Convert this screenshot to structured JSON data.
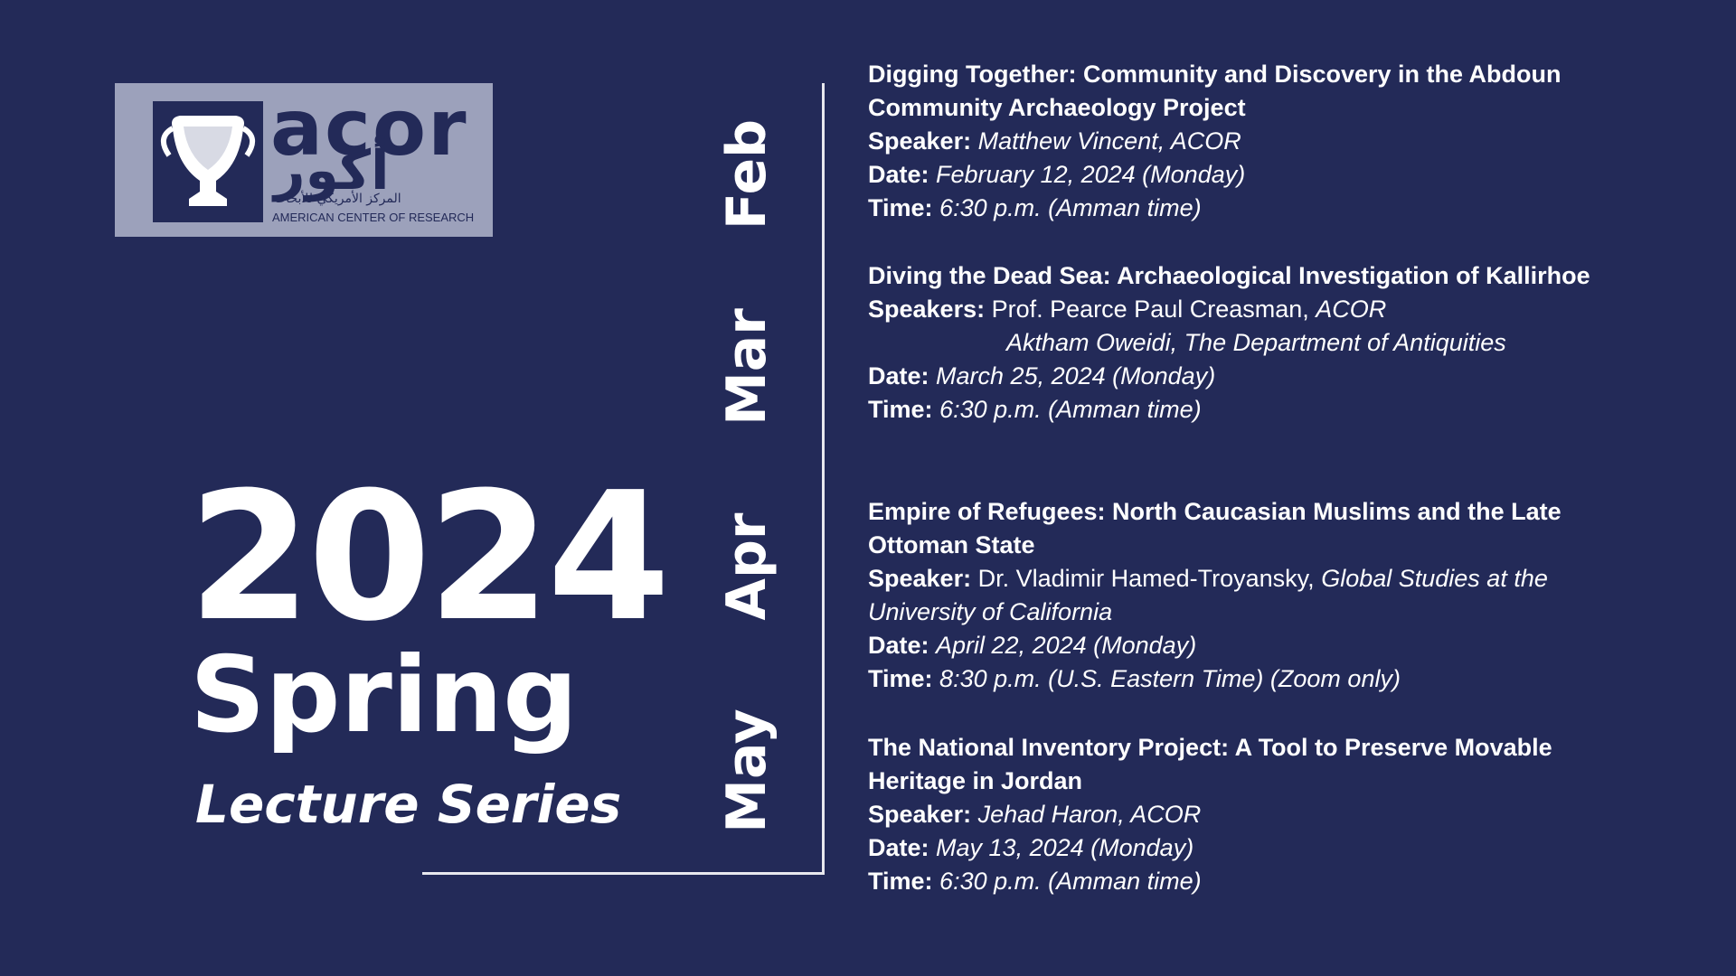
{
  "logo": {
    "latin": "acor",
    "arabic": "أكور",
    "arabic_name": "المركز الأمريكي للأبحاث",
    "english": "AMERICAN CENTER OF RESEARCH"
  },
  "year": "2024",
  "season": "Spring",
  "subtitle": "Lecture Series",
  "months": [
    "Feb",
    "Mar",
    "Apr",
    "May"
  ],
  "lectures": [
    {
      "title": "Digging Together: Community and Discovery in the Abdoun Community Archaeology Project",
      "speaker_label": "Speaker:",
      "speakers": [
        [
          {
            "text": "Matthew Vincent, ACOR",
            "italic": true
          }
        ]
      ],
      "date_label": "Date:",
      "date": "February 12, 2024 (Monday)",
      "time_label": "Time:",
      "time": "6:30 p.m. (Amman time)"
    },
    {
      "title": "Diving the Dead Sea: Archaeological Investigation of Kallirhoe",
      "speaker_label": "Speakers:",
      "speakers": [
        [
          {
            "text": "Prof. Pearce Paul Creasman,",
            "italic": false
          },
          {
            "text": "ACOR",
            "italic": true
          }
        ],
        [
          {
            "text": "Aktham Oweidi, The Department of Antiquities",
            "italic": true
          }
        ]
      ],
      "date_label": "Date:",
      "date": "March 25, 2024 (Monday)",
      "time_label": "Time:",
      "time": "6:30 p.m. (Amman time)"
    },
    {
      "title": "Empire of Refugees: North Caucasian Muslims and the Late Ottoman State",
      "speaker_label": "Speaker:",
      "speakers": [
        [
          {
            "text": "Dr. Vladimir Hamed-Troyansky,",
            "italic": false
          },
          {
            "text": "Global Studies at the University of California",
            "italic": true
          }
        ]
      ],
      "date_label": "Date:",
      "date": "April 22, 2024 (Monday)",
      "time_label": "Time:",
      "time": "8:30 p.m. (U.S. Eastern Time) (Zoom only)"
    },
    {
      "title": "The National Inventory Project: A Tool to Preserve Movable Heritage in Jordan",
      "speaker_label": "Speaker:",
      "speakers": [
        [
          {
            "text": "Jehad Haron, ACOR",
            "italic": true
          }
        ]
      ],
      "date_label": "Date:",
      "date": "May 13, 2024 (Monday)",
      "time_label": "Time:",
      "time": "6:30 p.m. (Amman time)"
    }
  ]
}
